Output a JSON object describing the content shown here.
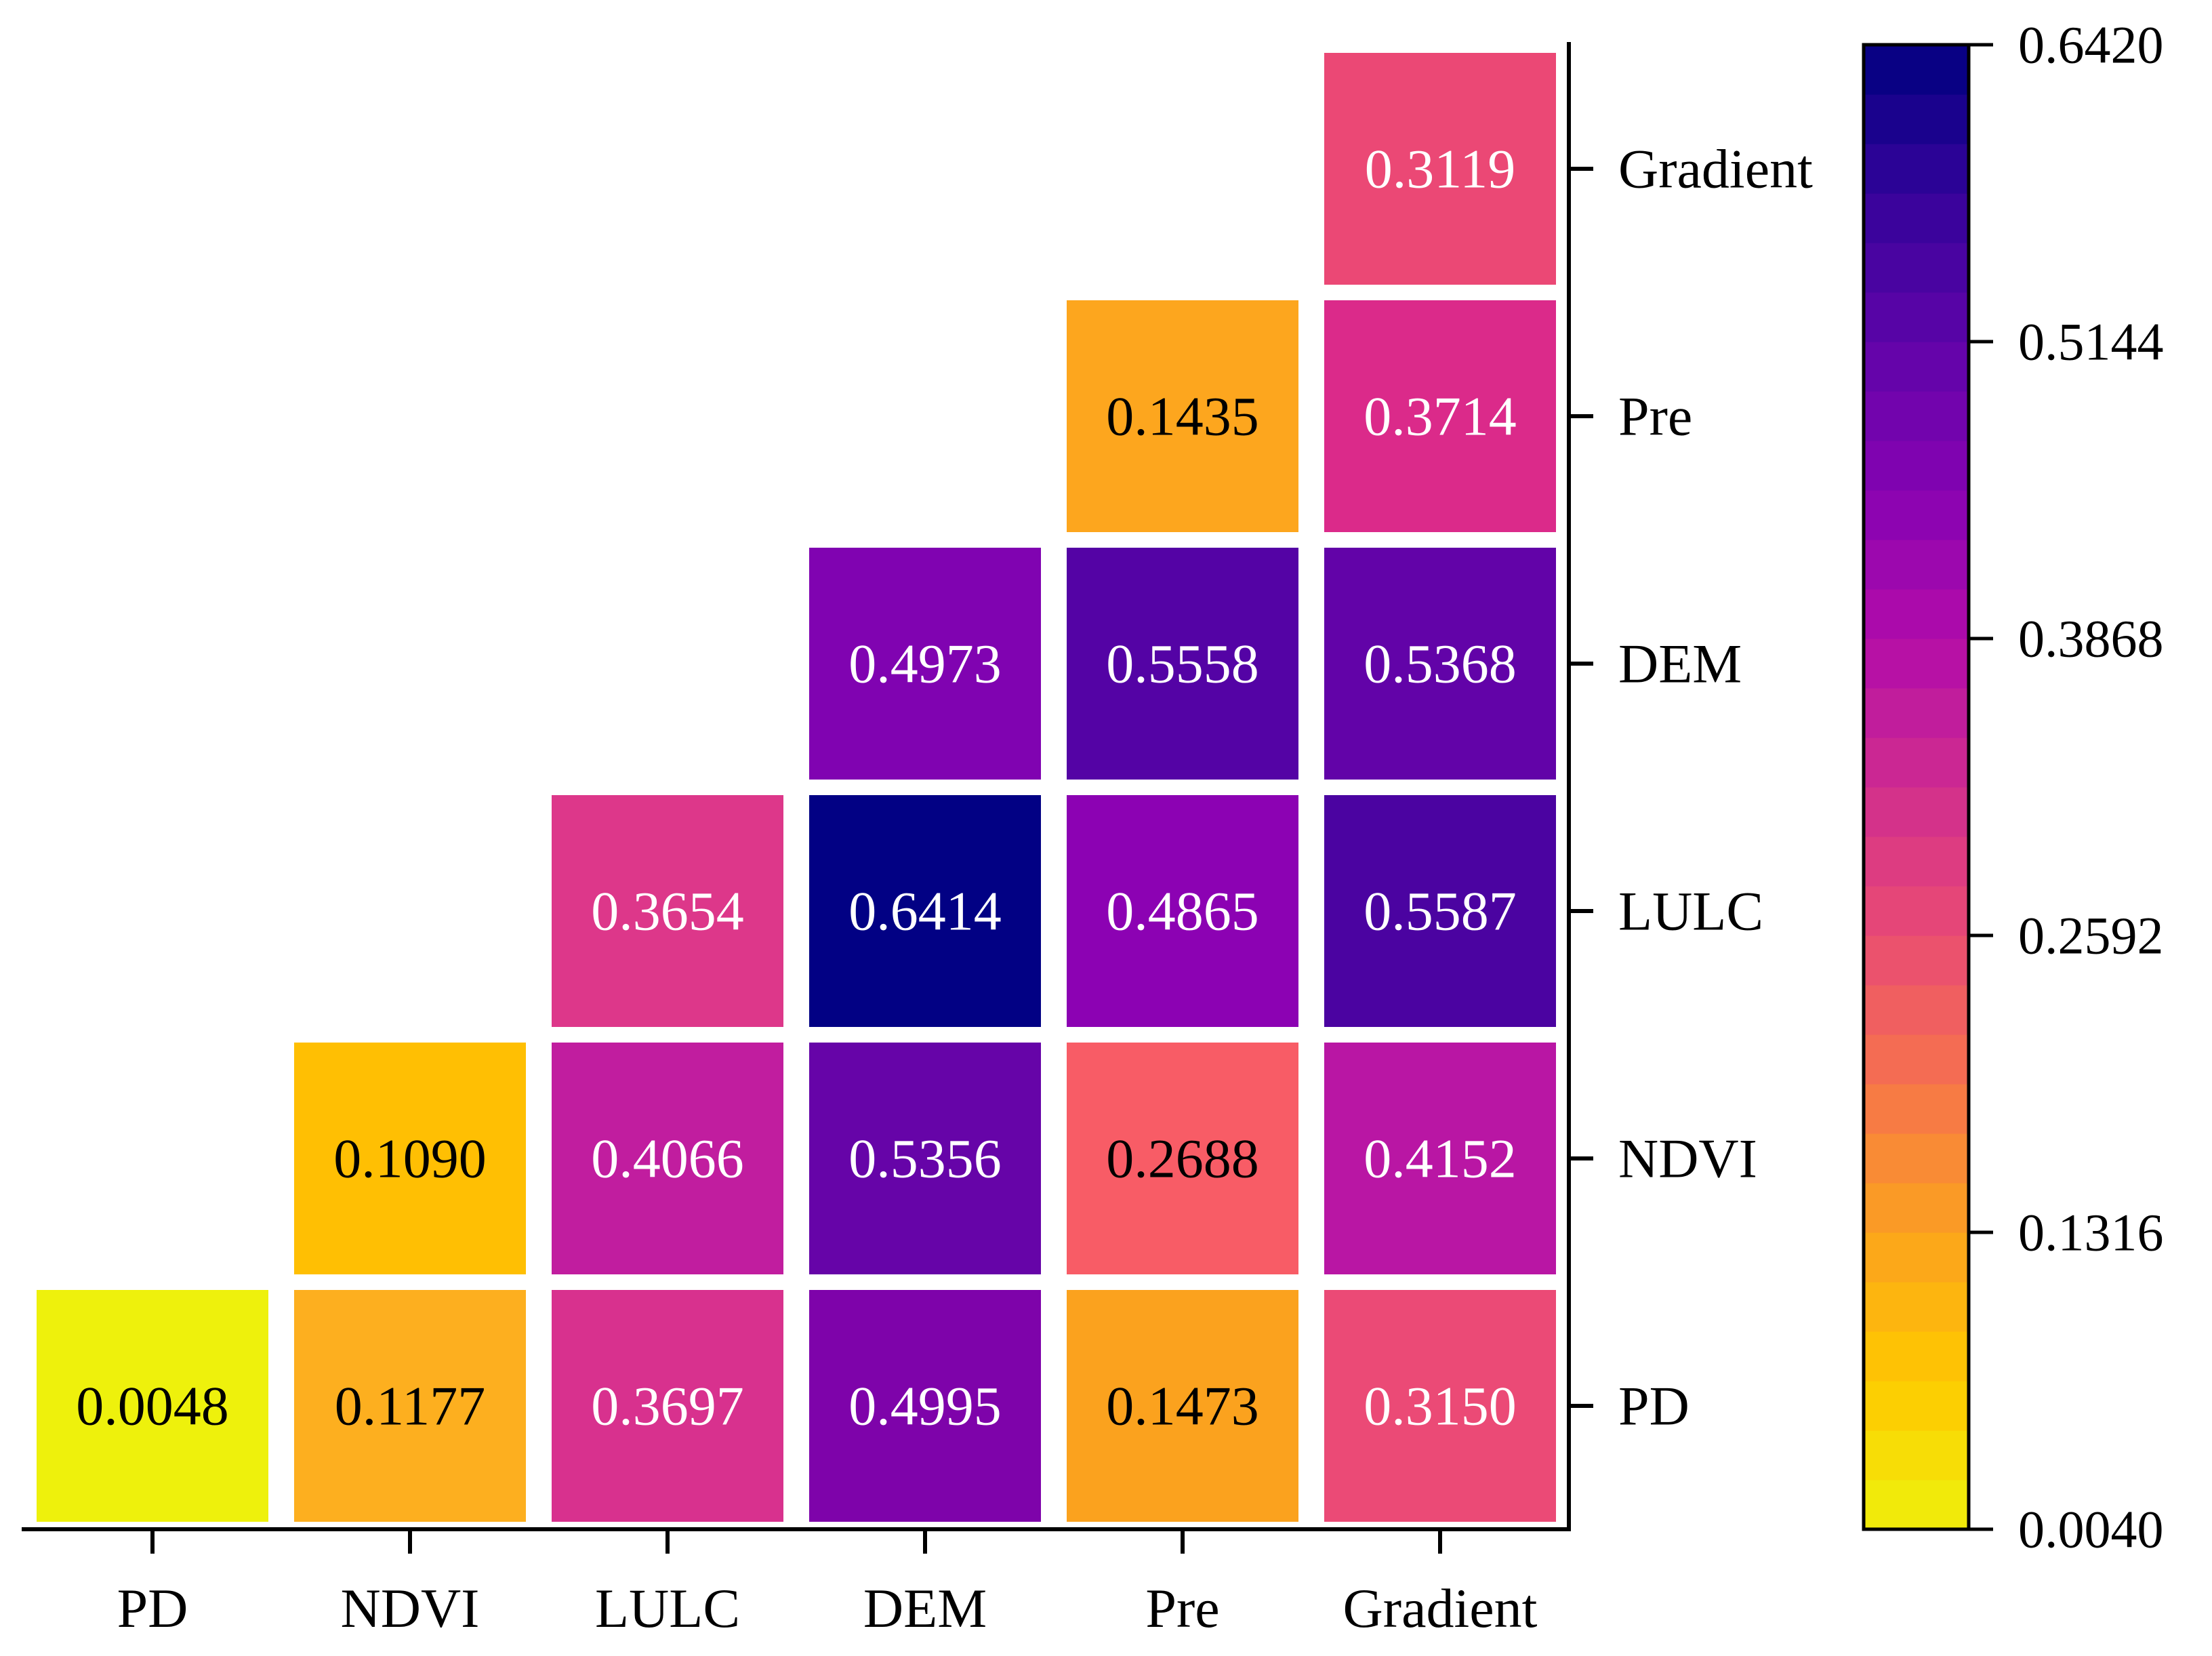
{
  "chart_data": {
    "type": "heatmap",
    "shape": "lower-triangle",
    "x_categories": [
      "PD",
      "NDVI",
      "LULC",
      "DEM",
      "Pre",
      "Gradient"
    ],
    "y_categories": [
      "PD",
      "NDVI",
      "LULC",
      "DEM",
      "Pre",
      "Gradient"
    ],
    "cells": [
      {
        "x": "PD",
        "y": "PD",
        "value": "0.0048",
        "color": "#EEF10C",
        "text_color": "#000000"
      },
      {
        "x": "NDVI",
        "y": "PD",
        "value": "0.1177",
        "color": "#FDAF1F",
        "text_color": "#000000"
      },
      {
        "x": "LULC",
        "y": "PD",
        "value": "0.3697",
        "color": "#D8318E",
        "text_color": "#ffffff"
      },
      {
        "x": "DEM",
        "y": "PD",
        "value": "0.4995",
        "color": "#7E03AA",
        "text_color": "#ffffff"
      },
      {
        "x": "Pre",
        "y": "PD",
        "value": "0.1473",
        "color": "#FBA21E",
        "text_color": "#000000"
      },
      {
        "x": "Gradient",
        "y": "PD",
        "value": "0.3150",
        "color": "#EB4A76",
        "text_color": "#ffffff"
      },
      {
        "x": "NDVI",
        "y": "NDVI",
        "value": "0.1090",
        "color": "#FFBF03",
        "text_color": "#000000"
      },
      {
        "x": "LULC",
        "y": "NDVI",
        "value": "0.4066",
        "color": "#C11D9F",
        "text_color": "#ffffff"
      },
      {
        "x": "DEM",
        "y": "NDVI",
        "value": "0.5356",
        "color": "#6604A8",
        "text_color": "#ffffff"
      },
      {
        "x": "Pre",
        "y": "NDVI",
        "value": "0.2688",
        "color": "#F85C66",
        "text_color": "#000000"
      },
      {
        "x": "Gradient",
        "y": "NDVI",
        "value": "0.4152",
        "color": "#B916A4",
        "text_color": "#ffffff"
      },
      {
        "x": "LULC",
        "y": "LULC",
        "value": "0.3654",
        "color": "#DD378A",
        "text_color": "#ffffff"
      },
      {
        "x": "DEM",
        "y": "LULC",
        "value": "0.6414",
        "color": "#020184",
        "text_color": "#ffffff"
      },
      {
        "x": "Pre",
        "y": "LULC",
        "value": "0.4865",
        "color": "#8C02B3",
        "text_color": "#ffffff"
      },
      {
        "x": "Gradient",
        "y": "LULC",
        "value": "0.5587",
        "color": "#4B03A1",
        "text_color": "#ffffff"
      },
      {
        "x": "DEM",
        "y": "DEM",
        "value": "0.4973",
        "color": "#8003B1",
        "text_color": "#ffffff"
      },
      {
        "x": "Pre",
        "y": "DEM",
        "value": "0.5558",
        "color": "#5403A5",
        "text_color": "#ffffff"
      },
      {
        "x": "Gradient",
        "y": "DEM",
        "value": "0.5368",
        "color": "#6203A8",
        "text_color": "#ffffff"
      },
      {
        "x": "Pre",
        "y": "Pre",
        "value": "0.1435",
        "color": "#FDA61E",
        "text_color": "#000000"
      },
      {
        "x": "Gradient",
        "y": "Pre",
        "value": "0.3714",
        "color": "#DB2A8A",
        "text_color": "#ffffff"
      },
      {
        "x": "Gradient",
        "y": "Gradient",
        "value": "0.3119",
        "color": "#EB4875",
        "text_color": "#ffffff"
      }
    ],
    "colorbar": {
      "min": 0.004,
      "max": 0.642,
      "ticks": [
        "0.6420",
        "0.5144",
        "0.3868",
        "0.2592",
        "0.1316",
        "0.0040"
      ],
      "tick_values": [
        0.642,
        0.5144,
        0.3868,
        0.2592,
        0.1316,
        0.004
      ],
      "levels": 30,
      "stops": [
        "#EEF10C",
        "#FFC800",
        "#FBA21E",
        "#F6734C",
        "#E94B73",
        "#D02D8F",
        "#B20CA9",
        "#8603B2",
        "#5E04A8",
        "#34039A",
        "#000080"
      ]
    },
    "title": "",
    "xlabel": "",
    "ylabel": ""
  }
}
